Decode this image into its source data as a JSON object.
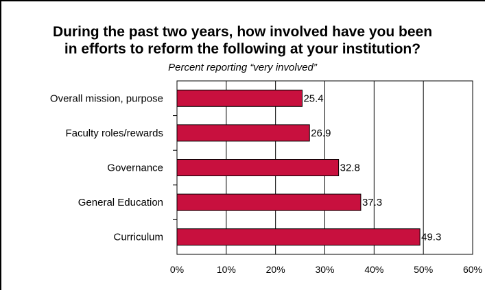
{
  "chart_data": {
    "type": "bar",
    "orientation": "horizontal",
    "title_line1": "During the past two years, how involved have you been",
    "title_line2": "in efforts to reform the following at your institution?",
    "subtitle": "Percent reporting “very involved”",
    "categories": [
      "Overall mission, purpose",
      "Faculty roles/rewards",
      "Governance",
      "General Education",
      "Curriculum"
    ],
    "values": [
      25.4,
      26.9,
      32.8,
      37.3,
      49.3
    ],
    "value_labels": [
      "25.4",
      "26.9",
      "32.8",
      "37.3",
      "49.3"
    ],
    "xlim": [
      0,
      60
    ],
    "xticks": [
      0,
      10,
      20,
      30,
      40,
      50,
      60
    ],
    "xtick_labels": [
      "0%",
      "10%",
      "20%",
      "30%",
      "40%",
      "50%",
      "60%"
    ],
    "grid": "vertical",
    "bar_color": "#c8103e"
  }
}
